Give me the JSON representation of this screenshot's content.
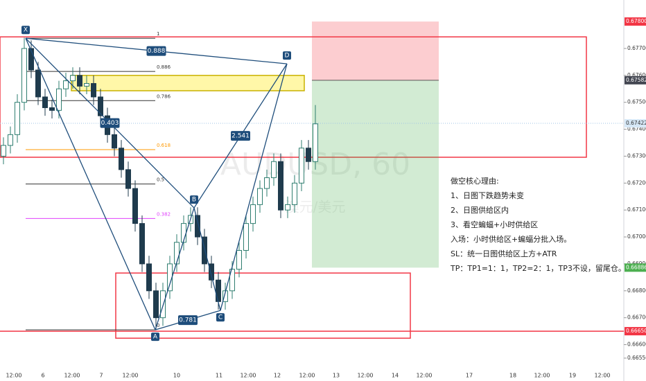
{
  "chart_data": {
    "type": "candlestick",
    "symbol": "AUDUSD, 60",
    "symbol_name": "澳元/美元",
    "up_color": "#2e7d6f",
    "down_color": "#1f3b4d",
    "ylim": [
      0.66465,
      0.6788
    ],
    "yticks": [
      {
        "value": 0.677,
        "label": "0.67700"
      },
      {
        "value": 0.676,
        "label": "0.67600"
      },
      {
        "value": 0.675,
        "label": "0.67500"
      },
      {
        "value": 0.674,
        "label": "0.67400"
      },
      {
        "value": 0.673,
        "label": "0.67300"
      },
      {
        "value": 0.672,
        "label": "0.67200"
      },
      {
        "value": 0.671,
        "label": "0.67100"
      },
      {
        "value": 0.67,
        "label": "0.67000"
      },
      {
        "value": 0.669,
        "label": "0.66900"
      },
      {
        "value": 0.668,
        "label": "0.66800"
      },
      {
        "value": 0.667,
        "label": "0.66700"
      },
      {
        "value": 0.666,
        "label": "0.66600"
      },
      {
        "value": 0.6655,
        "label": "0.66550"
      }
    ],
    "price_marks": [
      {
        "value": 0.678,
        "label": "0.67800",
        "color": "#f23645"
      },
      {
        "value": 0.67582,
        "label": "0.67582",
        "color": "#434651"
      },
      {
        "value": 0.67422,
        "label": "0.67422",
        "color": "#d6e8f7"
      },
      {
        "value": 0.66886,
        "label": "0.66886",
        "color": "#4caf50"
      },
      {
        "value": 0.6665,
        "label": "0.66650",
        "color": "#f23645"
      }
    ],
    "x_labels": [
      "12:00",
      "6",
      "12:00",
      "7",
      "12:00",
      "10",
      "11",
      "12:00",
      "12",
      "12:00",
      "13",
      "12:00",
      "14",
      "12:00",
      "17",
      "18",
      "12:00",
      "19",
      "12:00"
    ],
    "candles": [
      [
        0.673,
        0.6737,
        0.6727,
        0.6734
      ],
      [
        0.6734,
        0.6741,
        0.6731,
        0.6738
      ],
      [
        0.6738,
        0.6753,
        0.6735,
        0.675
      ],
      [
        0.675,
        0.6774,
        0.6747,
        0.677
      ],
      [
        0.677,
        0.6773,
        0.6759,
        0.6762
      ],
      [
        0.6762,
        0.6765,
        0.6749,
        0.6752
      ],
      [
        0.6752,
        0.6755,
        0.6745,
        0.6748
      ],
      [
        0.6748,
        0.6751,
        0.6744,
        0.6747
      ],
      [
        0.6747,
        0.6758,
        0.6744,
        0.6755
      ],
      [
        0.6755,
        0.6761,
        0.6752,
        0.6758
      ],
      [
        0.6758,
        0.6763,
        0.6755,
        0.676
      ],
      [
        0.676,
        0.6763,
        0.6753,
        0.6756
      ],
      [
        0.6756,
        0.676,
        0.6753,
        0.6757
      ],
      [
        0.6757,
        0.676,
        0.6749,
        0.6752
      ],
      [
        0.6752,
        0.6755,
        0.6742,
        0.6745
      ],
      [
        0.6745,
        0.6748,
        0.6735,
        0.6738
      ],
      [
        0.6738,
        0.6741,
        0.673,
        0.6733
      ],
      [
        0.6733,
        0.6736,
        0.6722,
        0.6725
      ],
      [
        0.6725,
        0.6728,
        0.6715,
        0.6718
      ],
      [
        0.6718,
        0.6721,
        0.6702,
        0.6705
      ],
      [
        0.6705,
        0.6708,
        0.6687,
        0.669
      ],
      [
        0.669,
        0.6693,
        0.6677,
        0.668
      ],
      [
        0.668,
        0.6683,
        0.66655,
        0.667
      ],
      [
        0.667,
        0.6683,
        0.6667,
        0.668
      ],
      [
        0.668,
        0.6693,
        0.6677,
        0.669
      ],
      [
        0.669,
        0.6701,
        0.6687,
        0.6698
      ],
      [
        0.6698,
        0.6708,
        0.6695,
        0.6705
      ],
      [
        0.6705,
        0.6711,
        0.6702,
        0.6708
      ],
      [
        0.6708,
        0.6711,
        0.6697,
        0.67
      ],
      [
        0.67,
        0.6703,
        0.6687,
        0.669
      ],
      [
        0.669,
        0.6693,
        0.6681,
        0.6684
      ],
      [
        0.6684,
        0.6687,
        0.6673,
        0.6676
      ],
      [
        0.6676,
        0.6683,
        0.6673,
        0.668
      ],
      [
        0.668,
        0.6691,
        0.6677,
        0.6688
      ],
      [
        0.6688,
        0.6698,
        0.6685,
        0.6695
      ],
      [
        0.6695,
        0.6708,
        0.6692,
        0.6705
      ],
      [
        0.6705,
        0.6715,
        0.6702,
        0.6712
      ],
      [
        0.6712,
        0.6721,
        0.6709,
        0.6718
      ],
      [
        0.6718,
        0.6725,
        0.6715,
        0.6722
      ],
      [
        0.6722,
        0.6731,
        0.6719,
        0.6728
      ],
      [
        0.6728,
        0.6731,
        0.6707,
        0.671
      ],
      [
        0.671,
        0.6715,
        0.6707,
        0.6712
      ],
      [
        0.6712,
        0.6723,
        0.6709,
        0.672
      ],
      [
        0.672,
        0.6736,
        0.6717,
        0.6733
      ],
      [
        0.6733,
        0.6736,
        0.6725,
        0.6728
      ],
      [
        0.6728,
        0.6749,
        0.6725,
        0.6742
      ]
    ],
    "pattern": {
      "points": [
        {
          "label": "X",
          "value": 0.67738
        },
        {
          "label": "A",
          "value": 0.66655
        },
        {
          "label": "B",
          "value": 0.67108
        },
        {
          "label": "C",
          "value": 0.66727
        },
        {
          "label": "D",
          "value": 0.67643
        }
      ],
      "ratios": [
        0.888,
        0.403,
        2.541,
        0.781
      ]
    },
    "fib_levels": [
      {
        "value": 1,
        "color": "#333333"
      },
      {
        "value": 0.886,
        "color": "#333333"
      },
      {
        "value": 0.786,
        "color": "#333333"
      },
      {
        "value": 0.618,
        "color": "#ff9800"
      },
      {
        "value": 0.5,
        "color": "#333333"
      },
      {
        "value": 0.382,
        "color": "#e040fb"
      },
      {
        "value": 0,
        "color": "#333333"
      }
    ],
    "zones": [
      {
        "top": 0.67743,
        "bottom": 0.67296,
        "color": "#f23645",
        "fill": "none"
      },
      {
        "top": 0.676,
        "bottom": 0.67543,
        "color": "#c9b200",
        "fill": "#fff7a8"
      },
      {
        "top": 0.66866,
        "bottom": 0.66624,
        "color": "#f23645",
        "fill": "none"
      }
    ],
    "position": {
      "stop": 0.678,
      "entry": 0.67582,
      "target": 0.66886
    },
    "notes": {
      "title": "做空核心理由:",
      "lines": [
        "1、日图下跌趋势未变",
        "2、日图供给区内",
        "3、看空蝙蝠+小时供给区",
        "入场：小时供给区+蝙蝠分批入场。",
        "SL：统一日图供给区上方+ATR",
        "TP：TP1=1：1，TP2=2：1，TP3不设，留尾仓。"
      ]
    }
  }
}
